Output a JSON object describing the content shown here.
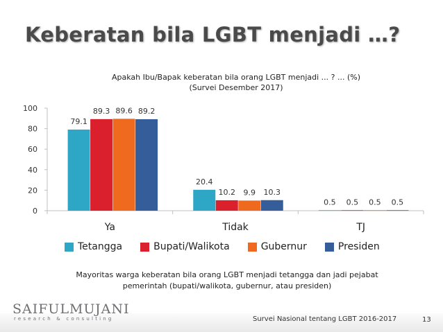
{
  "slide": {
    "title": "Keberatan bila LGBT menjadi …?",
    "subtitle_line1": "Apakah Ibu/Bapak keberatan bila orang LGBT menjadi ... ? ... (%)",
    "subtitle_line2": "(Survei Desember 2017)",
    "note_line1": "Mayoritas warga keberatan bila orang LGBT menjadi tetangga dan jadi pejabat",
    "note_line2": "pemerintah (bupati/walikota, gubernur, atau presiden)",
    "brand_name": "SAIFULMUJANI",
    "brand_tagline": "research & consulting",
    "source": "Survei Nasional tentang LGBT 2016-2017",
    "slide_number": "13"
  },
  "chart_data": {
    "type": "bar",
    "title": "Apakah Ibu/Bapak keberatan bila orang LGBT menjadi ... ? ... (%)",
    "subtitle": "(Survei Desember 2017)",
    "categories": [
      "Ya",
      "Tidak",
      "TJ"
    ],
    "series": [
      {
        "name": "Tetangga",
        "values": [
          79.1,
          20.4,
          0.5
        ],
        "color": "#2ea7c7"
      },
      {
        "name": "Bupati/Walikota",
        "values": [
          89.3,
          10.2,
          0.5
        ],
        "color": "#d9202c"
      },
      {
        "name": "Gubernur",
        "values": [
          89.6,
          9.9,
          0.5
        ],
        "color": "#ef6a1e"
      },
      {
        "name": "Presiden",
        "values": [
          89.2,
          10.3,
          0.5
        ],
        "color": "#355d9a"
      }
    ],
    "yticks": [
      0,
      20,
      40,
      60,
      80,
      100
    ],
    "ylim": [
      0,
      100
    ],
    "grid": false,
    "legend": "bottom",
    "data_labels": true
  }
}
